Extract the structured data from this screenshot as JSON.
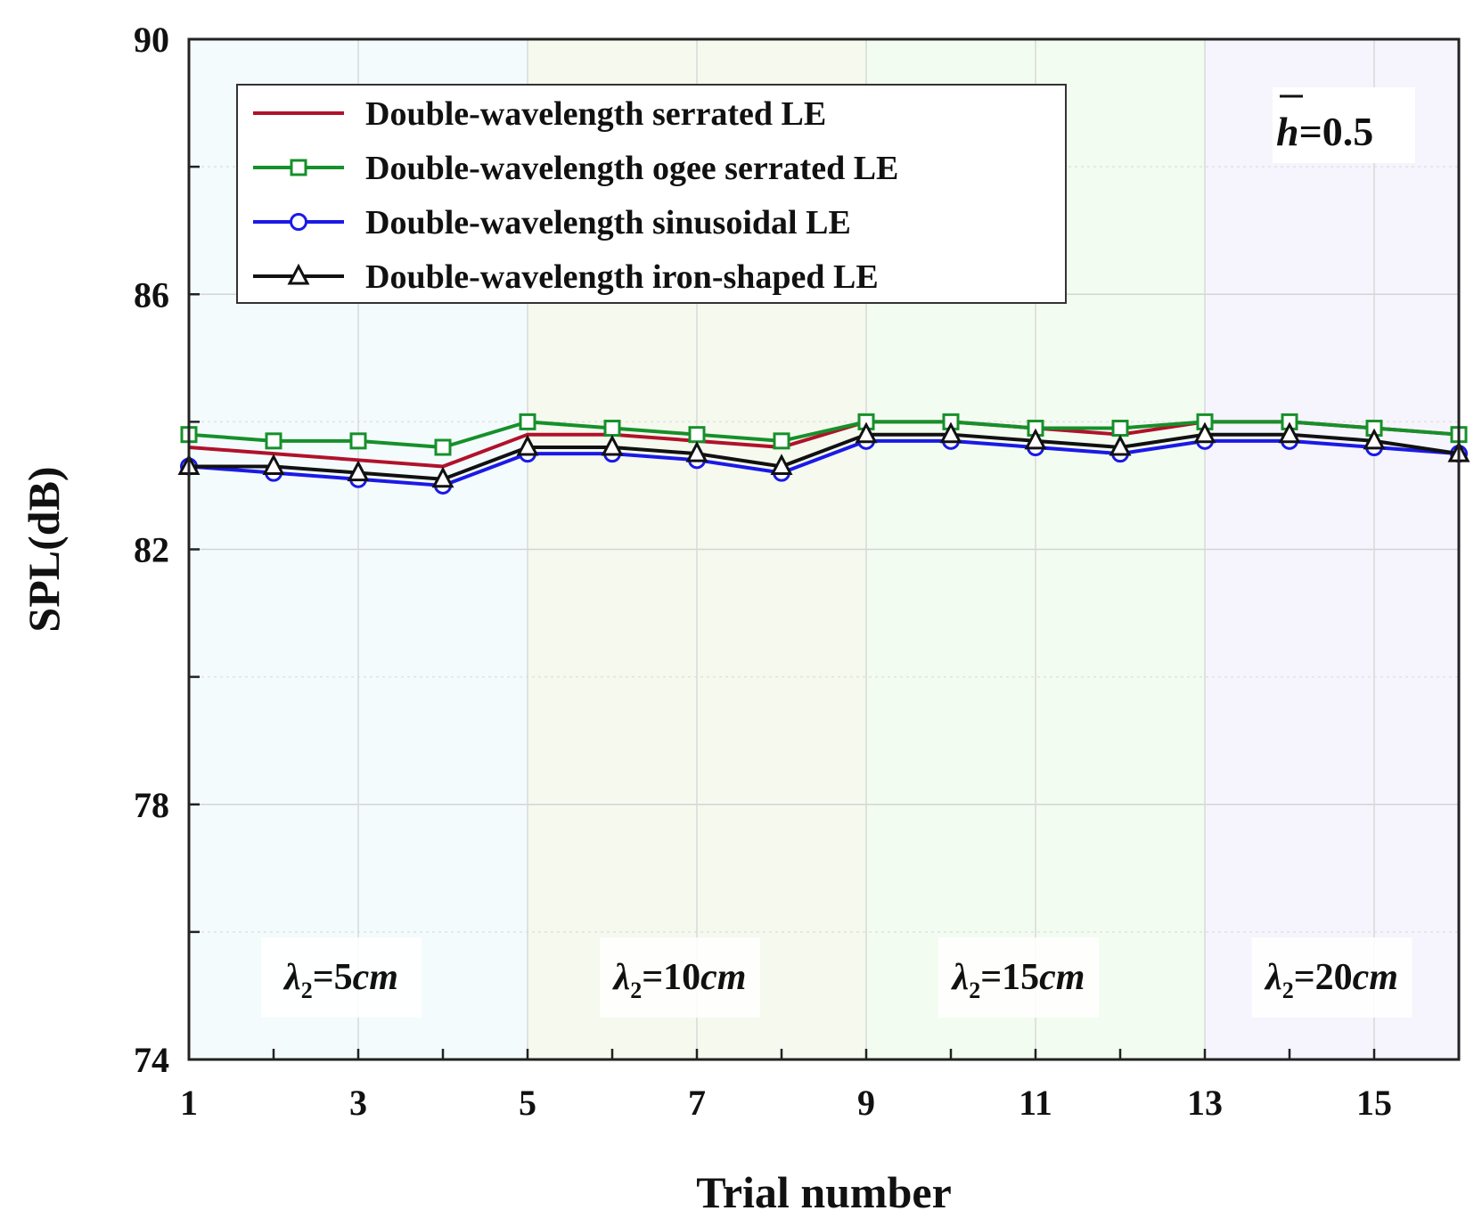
{
  "chart_data": {
    "type": "line",
    "title": "",
    "xlabel": "Trial number",
    "ylabel": "SPL(dB)",
    "xlim": [
      1,
      16
    ],
    "ylim": [
      74,
      90
    ],
    "xticks": [
      1,
      3,
      5,
      7,
      9,
      11,
      13,
      15
    ],
    "yticks": [
      74,
      78,
      82,
      86,
      90
    ],
    "x": [
      1,
      2,
      3,
      4,
      5,
      6,
      7,
      8,
      9,
      10,
      11,
      12,
      13,
      14,
      15,
      16
    ],
    "series": [
      {
        "name": "Double-wavelength serrated LE",
        "color": "#b0122a",
        "marker": "none",
        "values": [
          83.6,
          83.5,
          83.4,
          83.3,
          83.8,
          83.8,
          83.7,
          83.6,
          84.0,
          84.0,
          83.9,
          83.8,
          84.0,
          84.0,
          83.9,
          83.8
        ]
      },
      {
        "name": "Double-wavelength ogee serrated LE",
        "color": "#16902a",
        "marker": "square",
        "values": [
          83.8,
          83.7,
          83.7,
          83.6,
          84.0,
          83.9,
          83.8,
          83.7,
          84.0,
          84.0,
          83.9,
          83.9,
          84.0,
          84.0,
          83.9,
          83.8
        ]
      },
      {
        "name": "Double-wavelength sinusoidal LE",
        "color": "#1a1ae6",
        "marker": "circle",
        "values": [
          83.3,
          83.2,
          83.1,
          83.0,
          83.5,
          83.5,
          83.4,
          83.2,
          83.7,
          83.7,
          83.6,
          83.5,
          83.7,
          83.7,
          83.6,
          83.5
        ]
      },
      {
        "name": "Double-wavelength iron-shaped LE",
        "color": "#111111",
        "marker": "triangle",
        "values": [
          83.3,
          83.3,
          83.2,
          83.1,
          83.6,
          83.6,
          83.5,
          83.3,
          83.8,
          83.8,
          83.7,
          83.6,
          83.8,
          83.8,
          83.7,
          83.5
        ]
      }
    ],
    "legend_position": "top-left",
    "parameter_label": {
      "symbol": "h",
      "text": "=0.5"
    },
    "regions": [
      {
        "from": 1,
        "to": 5,
        "symbol": "λ",
        "subscript": "2",
        "value": "=5",
        "unit": "cm",
        "fill": "#f4fbfd"
      },
      {
        "from": 5,
        "to": 9,
        "symbol": "λ",
        "subscript": "2",
        "value": "=10",
        "unit": "cm",
        "fill": "#f5f9ee"
      },
      {
        "from": 9,
        "to": 13,
        "symbol": "λ",
        "subscript": "2",
        "value": "=15",
        "unit": "cm",
        "fill": "#f3fcf1"
      },
      {
        "from": 13,
        "to": 16,
        "symbol": "λ",
        "subscript": "2",
        "value": "=20",
        "unit": "cm",
        "fill": "#f6f4fc"
      }
    ],
    "grid": true
  }
}
